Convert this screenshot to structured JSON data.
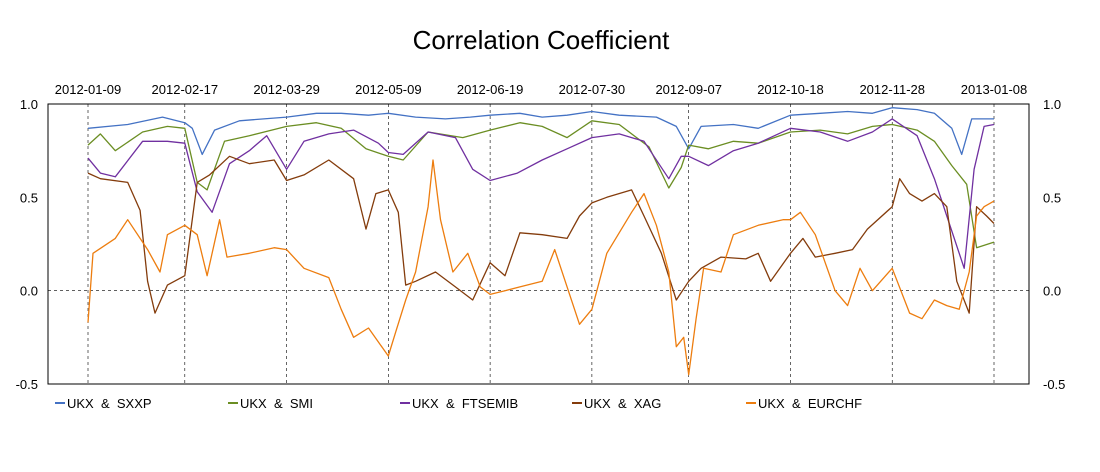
{
  "chart_data": {
    "type": "line",
    "title": "Correlation Coefficient",
    "x_tick_labels": [
      "2012-01-09",
      "2012-02-17",
      "2012-03-29",
      "2012-05-09",
      "2012-06-19",
      "2012-07-30",
      "2012-09-07",
      "2012-10-18",
      "2012-11-28",
      "2013-01-08"
    ],
    "y_ticks": [
      1.0,
      0.5,
      0.0,
      -0.5
    ],
    "y_tick_labels": [
      "1.0",
      "0.5",
      "0.0",
      "-0.5"
    ],
    "ylim": [
      -0.5,
      1.0
    ],
    "x_range": [
      "2012-01-09",
      "2013-01-15"
    ],
    "grid": "vertical dashed lines at date ticks, horizontal dashed line at 0.0",
    "legend_position": "bottom",
    "series": [
      {
        "name": "UKX  &  SXXP",
        "color": "#4472C4",
        "points": [
          [
            "2012-01-09",
            0.87
          ],
          [
            "2012-01-25",
            0.89
          ],
          [
            "2012-02-08",
            0.93
          ],
          [
            "2012-02-17",
            0.9
          ],
          [
            "2012-02-20",
            0.87
          ],
          [
            "2012-02-24",
            0.73
          ],
          [
            "2012-02-29",
            0.86
          ],
          [
            "2012-03-10",
            0.91
          ],
          [
            "2012-03-29",
            0.93
          ],
          [
            "2012-04-10",
            0.95
          ],
          [
            "2012-04-20",
            0.95
          ],
          [
            "2012-05-01",
            0.94
          ],
          [
            "2012-05-09",
            0.95
          ],
          [
            "2012-05-20",
            0.93
          ],
          [
            "2012-06-01",
            0.92
          ],
          [
            "2012-06-11",
            0.93
          ],
          [
            "2012-06-19",
            0.94
          ],
          [
            "2012-07-01",
            0.95
          ],
          [
            "2012-07-10",
            0.93
          ],
          [
            "2012-07-20",
            0.94
          ],
          [
            "2012-07-30",
            0.96
          ],
          [
            "2012-08-10",
            0.94
          ],
          [
            "2012-08-25",
            0.93
          ],
          [
            "2012-09-02",
            0.88
          ],
          [
            "2012-09-07",
            0.76
          ],
          [
            "2012-09-12",
            0.88
          ],
          [
            "2012-09-25",
            0.89
          ],
          [
            "2012-10-05",
            0.87
          ],
          [
            "2012-10-18",
            0.94
          ],
          [
            "2012-10-30",
            0.95
          ],
          [
            "2012-11-10",
            0.96
          ],
          [
            "2012-11-20",
            0.95
          ],
          [
            "2012-11-28",
            0.98
          ],
          [
            "2012-12-08",
            0.97
          ],
          [
            "2012-12-15",
            0.95
          ],
          [
            "2012-12-22",
            0.87
          ],
          [
            "2012-12-26",
            0.73
          ],
          [
            "2012-12-30",
            0.92
          ],
          [
            "2013-01-08",
            0.92
          ]
        ]
      },
      {
        "name": "UKX  &  SMI",
        "color": "#6B8E23",
        "points": [
          [
            "2012-01-09",
            0.78
          ],
          [
            "2012-01-14",
            0.84
          ],
          [
            "2012-01-20",
            0.75
          ],
          [
            "2012-01-31",
            0.85
          ],
          [
            "2012-02-10",
            0.88
          ],
          [
            "2012-02-17",
            0.87
          ],
          [
            "2012-02-22",
            0.58
          ],
          [
            "2012-02-26",
            0.54
          ],
          [
            "2012-03-04",
            0.8
          ],
          [
            "2012-03-14",
            0.83
          ],
          [
            "2012-03-29",
            0.88
          ],
          [
            "2012-04-10",
            0.9
          ],
          [
            "2012-04-20",
            0.87
          ],
          [
            "2012-04-30",
            0.76
          ],
          [
            "2012-05-09",
            0.72
          ],
          [
            "2012-05-15",
            0.7
          ],
          [
            "2012-05-25",
            0.85
          ],
          [
            "2012-06-08",
            0.82
          ],
          [
            "2012-06-19",
            0.86
          ],
          [
            "2012-07-01",
            0.9
          ],
          [
            "2012-07-10",
            0.88
          ],
          [
            "2012-07-20",
            0.82
          ],
          [
            "2012-07-30",
            0.91
          ],
          [
            "2012-08-10",
            0.89
          ],
          [
            "2012-08-22",
            0.77
          ],
          [
            "2012-08-30",
            0.55
          ],
          [
            "2012-09-04",
            0.66
          ],
          [
            "2012-09-07",
            0.78
          ],
          [
            "2012-09-15",
            0.76
          ],
          [
            "2012-09-25",
            0.8
          ],
          [
            "2012-10-05",
            0.79
          ],
          [
            "2012-10-18",
            0.85
          ],
          [
            "2012-10-30",
            0.86
          ],
          [
            "2012-11-10",
            0.84
          ],
          [
            "2012-11-20",
            0.88
          ],
          [
            "2012-11-28",
            0.89
          ],
          [
            "2012-12-08",
            0.86
          ],
          [
            "2012-12-15",
            0.8
          ],
          [
            "2012-12-22",
            0.67
          ],
          [
            "2012-12-28",
            0.57
          ],
          [
            "2013-01-01",
            0.23
          ],
          [
            "2013-01-08",
            0.26
          ]
        ]
      },
      {
        "name": "UKX  &  FTSEMIB",
        "color": "#7030A0",
        "points": [
          [
            "2012-01-09",
            0.71
          ],
          [
            "2012-01-14",
            0.63
          ],
          [
            "2012-01-20",
            0.61
          ],
          [
            "2012-01-31",
            0.8
          ],
          [
            "2012-02-10",
            0.8
          ],
          [
            "2012-02-17",
            0.79
          ],
          [
            "2012-02-22",
            0.53
          ],
          [
            "2012-02-28",
            0.42
          ],
          [
            "2012-03-06",
            0.68
          ],
          [
            "2012-03-14",
            0.75
          ],
          [
            "2012-03-21",
            0.83
          ],
          [
            "2012-03-29",
            0.65
          ],
          [
            "2012-04-05",
            0.8
          ],
          [
            "2012-04-15",
            0.84
          ],
          [
            "2012-04-25",
            0.86
          ],
          [
            "2012-05-05",
            0.79
          ],
          [
            "2012-05-09",
            0.74
          ],
          [
            "2012-05-15",
            0.73
          ],
          [
            "2012-05-25",
            0.85
          ],
          [
            "2012-06-05",
            0.82
          ],
          [
            "2012-06-12",
            0.65
          ],
          [
            "2012-06-19",
            0.59
          ],
          [
            "2012-06-30",
            0.63
          ],
          [
            "2012-07-10",
            0.7
          ],
          [
            "2012-07-20",
            0.76
          ],
          [
            "2012-07-30",
            0.82
          ],
          [
            "2012-08-10",
            0.84
          ],
          [
            "2012-08-20",
            0.8
          ],
          [
            "2012-08-30",
            0.6
          ],
          [
            "2012-09-04",
            0.72
          ],
          [
            "2012-09-07",
            0.72
          ],
          [
            "2012-09-15",
            0.67
          ],
          [
            "2012-09-25",
            0.75
          ],
          [
            "2012-10-05",
            0.79
          ],
          [
            "2012-10-18",
            0.87
          ],
          [
            "2012-10-30",
            0.85
          ],
          [
            "2012-11-10",
            0.8
          ],
          [
            "2012-11-20",
            0.85
          ],
          [
            "2012-11-28",
            0.92
          ],
          [
            "2012-12-08",
            0.83
          ],
          [
            "2012-12-15",
            0.6
          ],
          [
            "2012-12-20",
            0.4
          ],
          [
            "2012-12-27",
            0.12
          ],
          [
            "2012-12-31",
            0.65
          ],
          [
            "2013-01-04",
            0.88
          ],
          [
            "2013-01-08",
            0.89
          ]
        ]
      },
      {
        "name": "UKX  &  XAG",
        "color": "#843C0C",
        "points": [
          [
            "2012-01-09",
            0.63
          ],
          [
            "2012-01-14",
            0.6
          ],
          [
            "2012-01-25",
            0.58
          ],
          [
            "2012-01-30",
            0.43
          ],
          [
            "2012-02-02",
            0.05
          ],
          [
            "2012-02-05",
            -0.12
          ],
          [
            "2012-02-10",
            0.03
          ],
          [
            "2012-02-17",
            0.08
          ],
          [
            "2012-02-22",
            0.58
          ],
          [
            "2012-02-27",
            0.62
          ],
          [
            "2012-03-06",
            0.72
          ],
          [
            "2012-03-14",
            0.68
          ],
          [
            "2012-03-24",
            0.7
          ],
          [
            "2012-03-29",
            0.59
          ],
          [
            "2012-04-05",
            0.62
          ],
          [
            "2012-04-15",
            0.7
          ],
          [
            "2012-04-25",
            0.6
          ],
          [
            "2012-04-30",
            0.33
          ],
          [
            "2012-05-04",
            0.52
          ],
          [
            "2012-05-09",
            0.54
          ],
          [
            "2012-05-13",
            0.42
          ],
          [
            "2012-05-16",
            0.03
          ],
          [
            "2012-05-20",
            0.05
          ],
          [
            "2012-05-28",
            0.1
          ],
          [
            "2012-06-05",
            0.02
          ],
          [
            "2012-06-12",
            -0.05
          ],
          [
            "2012-06-19",
            0.15
          ],
          [
            "2012-06-25",
            0.08
          ],
          [
            "2012-07-01",
            0.31
          ],
          [
            "2012-07-10",
            0.3
          ],
          [
            "2012-07-20",
            0.28
          ],
          [
            "2012-07-25",
            0.4
          ],
          [
            "2012-07-30",
            0.47
          ],
          [
            "2012-08-05",
            0.5
          ],
          [
            "2012-08-15",
            0.54
          ],
          [
            "2012-08-20",
            0.4
          ],
          [
            "2012-08-27",
            0.2
          ],
          [
            "2012-09-02",
            -0.05
          ],
          [
            "2012-09-07",
            0.05
          ],
          [
            "2012-09-12",
            0.12
          ],
          [
            "2012-09-20",
            0.18
          ],
          [
            "2012-09-30",
            0.17
          ],
          [
            "2012-10-05",
            0.2
          ],
          [
            "2012-10-10",
            0.05
          ],
          [
            "2012-10-18",
            0.2
          ],
          [
            "2012-10-23",
            0.28
          ],
          [
            "2012-10-28",
            0.18
          ],
          [
            "2012-11-05",
            0.2
          ],
          [
            "2012-11-12",
            0.22
          ],
          [
            "2012-11-18",
            0.33
          ],
          [
            "2012-11-28",
            0.45
          ],
          [
            "2012-12-01",
            0.6
          ],
          [
            "2012-12-05",
            0.52
          ],
          [
            "2012-12-10",
            0.48
          ],
          [
            "2012-12-15",
            0.52
          ],
          [
            "2012-12-20",
            0.45
          ],
          [
            "2012-12-24",
            0.05
          ],
          [
            "2012-12-29",
            -0.12
          ],
          [
            "2013-01-01",
            0.45
          ],
          [
            "2013-01-05",
            0.4
          ],
          [
            "2013-01-08",
            0.36
          ]
        ]
      },
      {
        "name": "UKX  &  EURCHF",
        "color": "#ED7D0F",
        "points": [
          [
            "2012-01-09",
            -0.17
          ],
          [
            "2012-01-11",
            0.2
          ],
          [
            "2012-01-20",
            0.28
          ],
          [
            "2012-01-25",
            0.38
          ],
          [
            "2012-02-02",
            0.22
          ],
          [
            "2012-02-07",
            0.1
          ],
          [
            "2012-02-10",
            0.3
          ],
          [
            "2012-02-17",
            0.35
          ],
          [
            "2012-02-22",
            0.3
          ],
          [
            "2012-02-26",
            0.08
          ],
          [
            "2012-03-02",
            0.38
          ],
          [
            "2012-03-05",
            0.18
          ],
          [
            "2012-03-14",
            0.2
          ],
          [
            "2012-03-24",
            0.23
          ],
          [
            "2012-03-29",
            0.22
          ],
          [
            "2012-04-05",
            0.12
          ],
          [
            "2012-04-15",
            0.07
          ],
          [
            "2012-04-20",
            -0.1
          ],
          [
            "2012-04-25",
            -0.25
          ],
          [
            "2012-05-01",
            -0.2
          ],
          [
            "2012-05-09",
            -0.35
          ],
          [
            "2012-05-12",
            -0.22
          ],
          [
            "2012-05-16",
            -0.05
          ],
          [
            "2012-05-20",
            0.1
          ],
          [
            "2012-05-25",
            0.45
          ],
          [
            "2012-05-27",
            0.7
          ],
          [
            "2012-05-30",
            0.38
          ],
          [
            "2012-06-04",
            0.1
          ],
          [
            "2012-06-10",
            0.2
          ],
          [
            "2012-06-15",
            0.02
          ],
          [
            "2012-06-19",
            -0.02
          ],
          [
            "2012-06-25",
            0.0
          ],
          [
            "2012-07-01",
            0.02
          ],
          [
            "2012-07-10",
            0.05
          ],
          [
            "2012-07-15",
            0.22
          ],
          [
            "2012-07-20",
            0.02
          ],
          [
            "2012-07-25",
            -0.18
          ],
          [
            "2012-07-30",
            -0.1
          ],
          [
            "2012-08-05",
            0.2
          ],
          [
            "2012-08-15",
            0.42
          ],
          [
            "2012-08-20",
            0.52
          ],
          [
            "2012-08-25",
            0.35
          ],
          [
            "2012-08-30",
            0.1
          ],
          [
            "2012-09-02",
            -0.3
          ],
          [
            "2012-09-05",
            -0.25
          ],
          [
            "2012-09-07",
            -0.45
          ],
          [
            "2012-09-10",
            -0.15
          ],
          [
            "2012-09-13",
            0.12
          ],
          [
            "2012-09-20",
            0.1
          ],
          [
            "2012-09-25",
            0.3
          ],
          [
            "2012-10-05",
            0.35
          ],
          [
            "2012-10-15",
            0.38
          ],
          [
            "2012-10-18",
            0.38
          ],
          [
            "2012-10-22",
            0.42
          ],
          [
            "2012-10-28",
            0.3
          ],
          [
            "2012-11-05",
            0.0
          ],
          [
            "2012-11-10",
            -0.08
          ],
          [
            "2012-11-15",
            0.12
          ],
          [
            "2012-11-20",
            0.0
          ],
          [
            "2012-11-28",
            0.12
          ],
          [
            "2012-12-05",
            -0.12
          ],
          [
            "2012-12-10",
            -0.15
          ],
          [
            "2012-12-15",
            -0.05
          ],
          [
            "2012-12-20",
            -0.08
          ],
          [
            "2012-12-25",
            -0.1
          ],
          [
            "2012-12-29",
            0.1
          ],
          [
            "2013-01-01",
            0.4
          ],
          [
            "2013-01-04",
            0.45
          ],
          [
            "2013-01-08",
            0.48
          ]
        ]
      }
    ]
  }
}
